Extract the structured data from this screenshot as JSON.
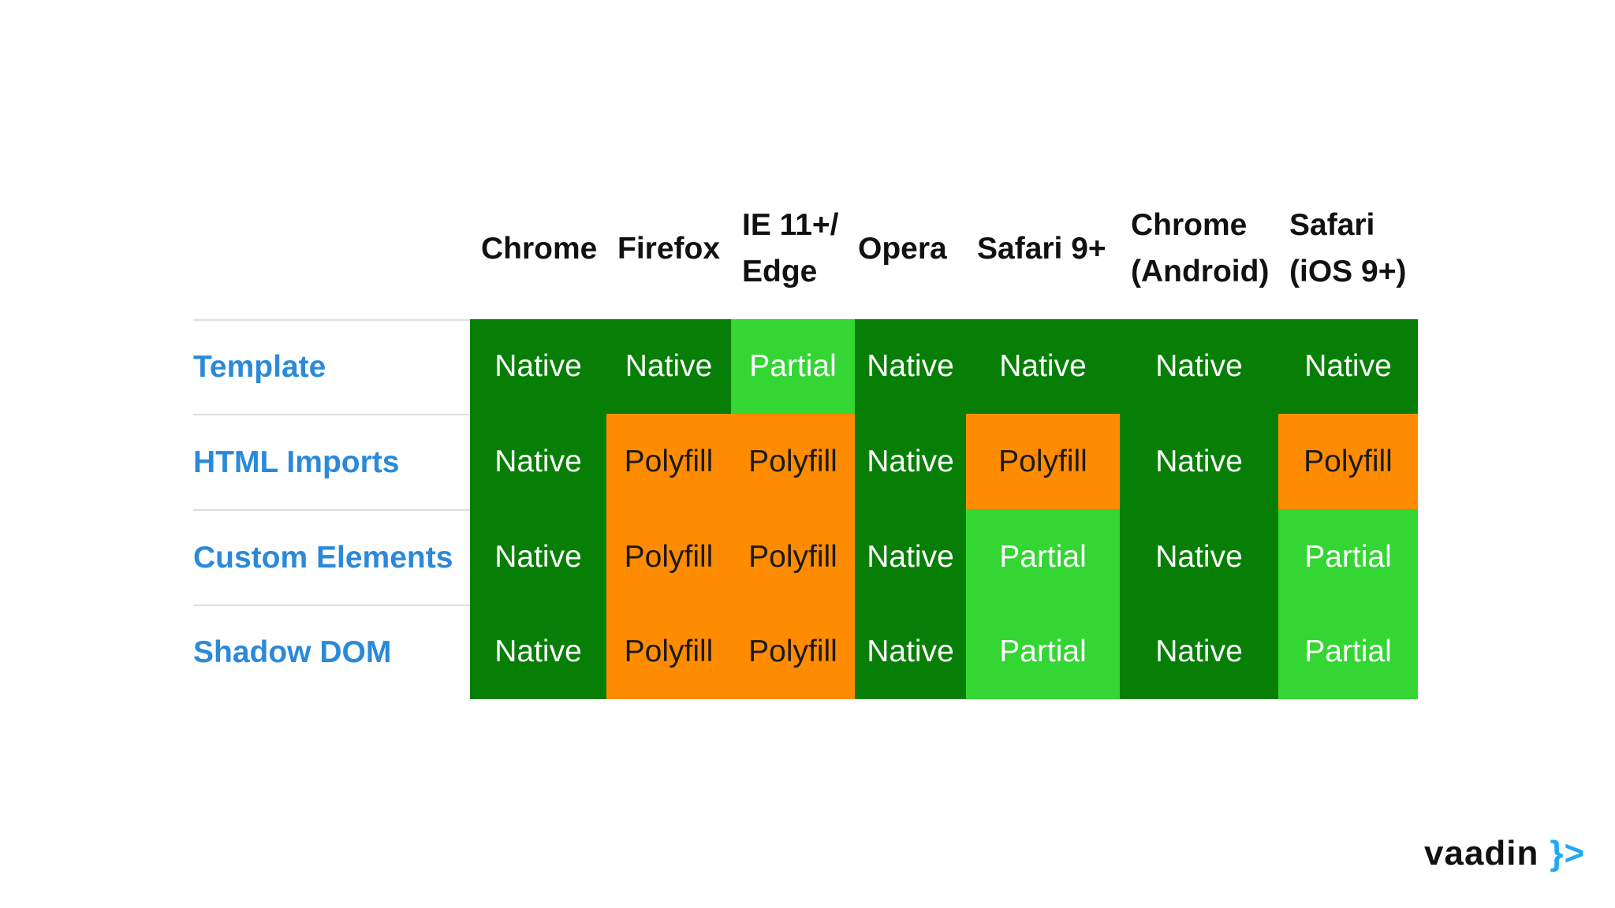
{
  "header": {
    "columns": [
      "Chrome",
      "Firefox",
      "IE 11+/\nEdge",
      "Opera",
      "Safari 9+",
      "Chrome\n(Android)",
      "Safari\n(iOS 9+)"
    ]
  },
  "table": {
    "rows": [
      {
        "label": "Template",
        "cells": [
          "Native",
          "Native",
          "Partial",
          "Native",
          "Native",
          "Native",
          "Native"
        ]
      },
      {
        "label": "HTML Imports",
        "cells": [
          "Native",
          "Polyfill",
          "Polyfill",
          "Native",
          "Polyfill",
          "Native",
          "Polyfill"
        ]
      },
      {
        "label": "Custom Elements",
        "cells": [
          "Native",
          "Polyfill",
          "Polyfill",
          "Native",
          "Partial",
          "Native",
          "Partial"
        ]
      },
      {
        "label": "Shadow DOM",
        "cells": [
          "Native",
          "Polyfill",
          "Polyfill",
          "Native",
          "Partial",
          "Native",
          "Partial"
        ]
      }
    ]
  },
  "status_colors": {
    "Native": {
      "bg": "#077f07",
      "fg": "#ffffff"
    },
    "Partial": {
      "bg": "#33d633",
      "fg": "#ffffff"
    },
    "Polyfill": {
      "bg": "#ff8c00",
      "fg": "#1a1a1a"
    }
  },
  "logo": {
    "text": "vaadin",
    "mark": "}>"
  }
}
